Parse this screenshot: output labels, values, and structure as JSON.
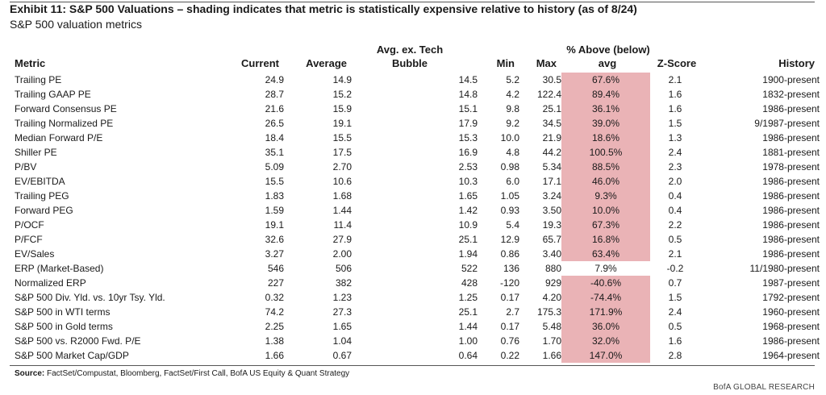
{
  "exhibit": {
    "title": "Exhibit 11: S&P 500 Valuations – shading indicates that metric is statistically expensive relative to history (as of 8/24)",
    "subtitle": "S&P 500 valuation metrics"
  },
  "columns": {
    "metric": "Metric",
    "current": "Current",
    "average": "Average",
    "avg_ex_tech_line1": "Avg. ex. Tech",
    "avg_ex_tech_line2": "Bubble",
    "min": "Min",
    "max": "Max",
    "pct_line1": "% Above (below)",
    "pct_line2": "avg",
    "zscore": "Z-Score",
    "history": "History"
  },
  "rows": [
    {
      "metric": "Trailing PE",
      "current": "24.9",
      "average": "14.9",
      "avg_ex_tech": "14.5",
      "min": "5.2",
      "max": "30.5",
      "pct_above_avg": "67.6%",
      "zscore": "2.1",
      "history": "1900-present",
      "shaded": true
    },
    {
      "metric": "Trailing GAAP PE",
      "current": "28.7",
      "average": "15.2",
      "avg_ex_tech": "14.8",
      "min": "4.2",
      "max": "122.4",
      "pct_above_avg": "89.4%",
      "zscore": "1.6",
      "history": "1832-present",
      "shaded": true
    },
    {
      "metric": "Forward Consensus PE",
      "current": "21.6",
      "average": "15.9",
      "avg_ex_tech": "15.1",
      "min": "9.8",
      "max": "25.1",
      "pct_above_avg": "36.1%",
      "zscore": "1.6",
      "history": "1986-present",
      "shaded": true
    },
    {
      "metric": "Trailing Normalized PE",
      "current": "26.5",
      "average": "19.1",
      "avg_ex_tech": "17.9",
      "min": "9.2",
      "max": "34.5",
      "pct_above_avg": "39.0%",
      "zscore": "1.5",
      "history": "9/1987-present",
      "shaded": true
    },
    {
      "metric": "Median Forward P/E",
      "current": "18.4",
      "average": "15.5",
      "avg_ex_tech": "15.3",
      "min": "10.0",
      "max": "21.9",
      "pct_above_avg": "18.6%",
      "zscore": "1.3",
      "history": "1986-present",
      "shaded": true
    },
    {
      "metric": "Shiller PE",
      "current": "35.1",
      "average": "17.5",
      "avg_ex_tech": "16.9",
      "min": "4.8",
      "max": "44.2",
      "pct_above_avg": "100.5%",
      "zscore": "2.4",
      "history": "1881-present",
      "shaded": true
    },
    {
      "metric": "P/BV",
      "current": "5.09",
      "average": "2.70",
      "avg_ex_tech": "2.53",
      "min": "0.98",
      "max": "5.34",
      "pct_above_avg": "88.5%",
      "zscore": "2.3",
      "history": "1978-present",
      "shaded": true
    },
    {
      "metric": "EV/EBITDA",
      "current": "15.5",
      "average": "10.6",
      "avg_ex_tech": "10.3",
      "min": "6.0",
      "max": "17.1",
      "pct_above_avg": "46.0%",
      "zscore": "2.0",
      "history": "1986-present",
      "shaded": true
    },
    {
      "metric": "Trailing PEG",
      "current": "1.83",
      "average": "1.68",
      "avg_ex_tech": "1.65",
      "min": "1.05",
      "max": "3.24",
      "pct_above_avg": "9.3%",
      "zscore": "0.4",
      "history": "1986-present",
      "shaded": true
    },
    {
      "metric": "Forward PEG",
      "current": "1.59",
      "average": "1.44",
      "avg_ex_tech": "1.42",
      "min": "0.93",
      "max": "3.50",
      "pct_above_avg": "10.0%",
      "zscore": "0.4",
      "history": "1986-present",
      "shaded": true
    },
    {
      "metric": "P/OCF",
      "current": "19.1",
      "average": "11.4",
      "avg_ex_tech": "10.9",
      "min": "5.4",
      "max": "19.3",
      "pct_above_avg": "67.3%",
      "zscore": "2.2",
      "history": "1986-present",
      "shaded": true
    },
    {
      "metric": "P/FCF",
      "current": "32.6",
      "average": "27.9",
      "avg_ex_tech": "25.1",
      "min": "12.9",
      "max": "65.7",
      "pct_above_avg": "16.8%",
      "zscore": "0.5",
      "history": "1986-present",
      "shaded": true
    },
    {
      "metric": "EV/Sales",
      "current": "3.27",
      "average": "2.00",
      "avg_ex_tech": "1.94",
      "min": "0.86",
      "max": "3.40",
      "pct_above_avg": "63.4%",
      "zscore": "2.1",
      "history": "1986-present",
      "shaded": true
    },
    {
      "metric": "ERP (Market-Based)",
      "current": "546",
      "average": "506",
      "avg_ex_tech": "522",
      "min": "136",
      "max": "880",
      "pct_above_avg": "7.9%",
      "zscore": "-0.2",
      "history": "11/1980-present",
      "shaded": false
    },
    {
      "metric": "Normalized ERP",
      "current": "227",
      "average": "382",
      "avg_ex_tech": "428",
      "min": "-120",
      "max": "929",
      "pct_above_avg": "-40.6%",
      "zscore": "0.7",
      "history": "1987-present",
      "shaded": true
    },
    {
      "metric": "S&P 500 Div. Yld. vs. 10yr Tsy. Yld.",
      "current": "0.32",
      "average": "1.23",
      "avg_ex_tech": "1.25",
      "min": "0.17",
      "max": "4.20",
      "pct_above_avg": "-74.4%",
      "zscore": "1.5",
      "history": "1792-present",
      "shaded": true
    },
    {
      "metric": "S&P 500 in WTI terms",
      "current": "74.2",
      "average": "27.3",
      "avg_ex_tech": "25.1",
      "min": "2.7",
      "max": "175.3",
      "pct_above_avg": "171.9%",
      "zscore": "2.4",
      "history": "1960-present",
      "shaded": true
    },
    {
      "metric": "S&P 500 in Gold terms",
      "current": "2.25",
      "average": "1.65",
      "avg_ex_tech": "1.44",
      "min": "0.17",
      "max": "5.48",
      "pct_above_avg": "36.0%",
      "zscore": "0.5",
      "history": "1968-present",
      "shaded": true
    },
    {
      "metric": "S&P 500 vs. R2000 Fwd. P/E",
      "current": "1.38",
      "average": "1.04",
      "avg_ex_tech": "1.00",
      "min": "0.76",
      "max": "1.70",
      "pct_above_avg": "32.0%",
      "zscore": "1.6",
      "history": "1986-present",
      "shaded": true
    },
    {
      "metric": "S&P 500 Market Cap/GDP",
      "current": "1.66",
      "average": "0.67",
      "avg_ex_tech": "0.64",
      "min": "0.22",
      "max": "1.66",
      "pct_above_avg": "147.0%",
      "zscore": "2.8",
      "history": "1964-present",
      "shaded": true
    }
  ],
  "footer": {
    "source_label": "Source:",
    "source_text": " FactSet/Compustat, Bloomberg, FactSet/First Call, BofA US Equity & Quant Strategy",
    "brand": "BofA GLOBAL RESEARCH"
  },
  "colors": {
    "shading": "#eab3b6"
  }
}
